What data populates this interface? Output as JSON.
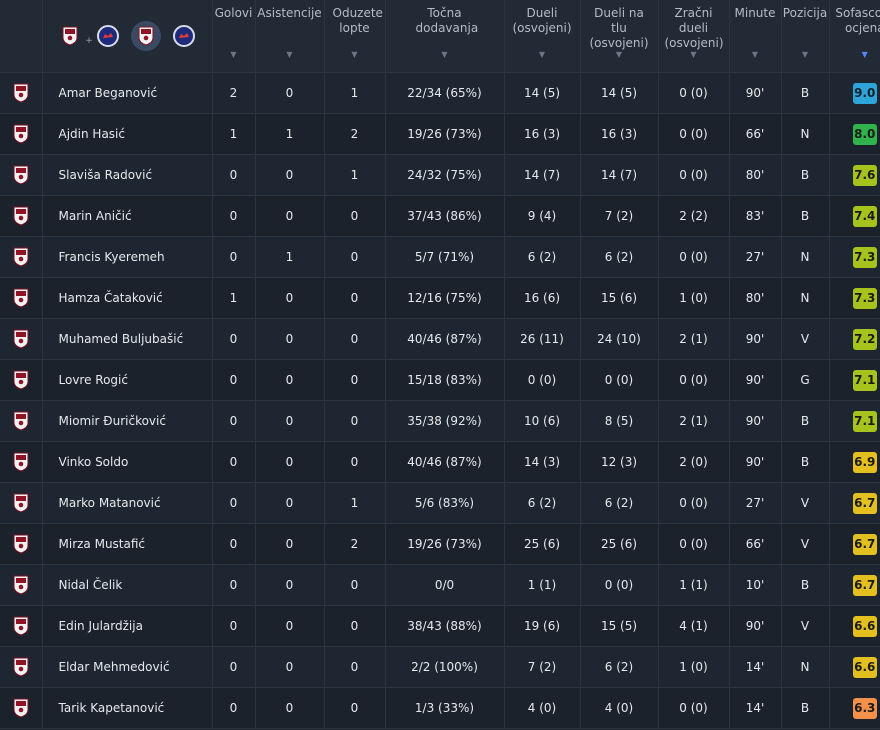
{
  "teams": [
    {
      "name": "sarajevo-crest",
      "selected": false
    },
    {
      "name": "opponent-crest",
      "selected": false
    },
    {
      "name": "sarajevo-crest",
      "selected": true
    },
    {
      "name": "opponent-crest",
      "selected": false
    }
  ],
  "columns": [
    {
      "key": "golovi",
      "label": "Golovi"
    },
    {
      "key": "asistencije",
      "label": "Asistencije"
    },
    {
      "key": "oduzete",
      "label": "Oduzete lopte"
    },
    {
      "key": "tocna",
      "label": "Točna dodavanja"
    },
    {
      "key": "dueli",
      "label": "Dueli (osvojeni)"
    },
    {
      "key": "dueli_tlu",
      "label": "Dueli na tlu (osvojeni)"
    },
    {
      "key": "zracni",
      "label": "Zračni dueli (osvojeni)"
    },
    {
      "key": "minute",
      "label": "Minute"
    },
    {
      "key": "pozicija",
      "label": "Pozicija"
    },
    {
      "key": "ocjena",
      "label": "Sofascore ocjena"
    }
  ],
  "colors": {
    "r9": "#2fa4d8",
    "r8": "#2fb34a",
    "r7": "#a6c21c",
    "r6": "#e3c01f",
    "r6low": "#f39049"
  },
  "players": [
    {
      "name": "Amar Beganović",
      "golovi": "2",
      "asistencije": "0",
      "oduzete": "1",
      "tocna": "22/34 (65%)",
      "dueli": "14 (5)",
      "dueli_tlu": "14 (5)",
      "zracni": "0 (0)",
      "minute": "90'",
      "pozicija": "B",
      "ocjena": "9.0",
      "rating_color": "#2fa4d8"
    },
    {
      "name": "Ajdin Hasić",
      "golovi": "1",
      "asistencije": "1",
      "oduzete": "2",
      "tocna": "19/26 (73%)",
      "dueli": "16 (3)",
      "dueli_tlu": "16 (3)",
      "zracni": "0 (0)",
      "minute": "66'",
      "pozicija": "N",
      "ocjena": "8.0",
      "rating_color": "#2fb34a"
    },
    {
      "name": "Slaviša Radović",
      "golovi": "0",
      "asistencije": "0",
      "oduzete": "1",
      "tocna": "24/32 (75%)",
      "dueli": "14 (7)",
      "dueli_tlu": "14 (7)",
      "zracni": "0 (0)",
      "minute": "80'",
      "pozicija": "B",
      "ocjena": "7.6",
      "rating_color": "#a6c21c"
    },
    {
      "name": "Marin Aničić",
      "golovi": "0",
      "asistencije": "0",
      "oduzete": "0",
      "tocna": "37/43 (86%)",
      "dueli": "9 (4)",
      "dueli_tlu": "7 (2)",
      "zracni": "2 (2)",
      "minute": "83'",
      "pozicija": "B",
      "ocjena": "7.4",
      "rating_color": "#a6c21c"
    },
    {
      "name": "Francis Kyeremeh",
      "golovi": "0",
      "asistencije": "1",
      "oduzete": "0",
      "tocna": "5/7 (71%)",
      "dueli": "6 (2)",
      "dueli_tlu": "6 (2)",
      "zracni": "0 (0)",
      "minute": "27'",
      "pozicija": "N",
      "ocjena": "7.3",
      "rating_color": "#a6c21c"
    },
    {
      "name": "Hamza Čataković",
      "golovi": "1",
      "asistencije": "0",
      "oduzete": "0",
      "tocna": "12/16 (75%)",
      "dueli": "16 (6)",
      "dueli_tlu": "15 (6)",
      "zracni": "1 (0)",
      "minute": "80'",
      "pozicija": "N",
      "ocjena": "7.3",
      "rating_color": "#a6c21c"
    },
    {
      "name": "Muhamed Buljubašić",
      "golovi": "0",
      "asistencije": "0",
      "oduzete": "0",
      "tocna": "40/46 (87%)",
      "dueli": "26 (11)",
      "dueli_tlu": "24 (10)",
      "zracni": "2 (1)",
      "minute": "90'",
      "pozicija": "V",
      "ocjena": "7.2",
      "rating_color": "#a6c21c"
    },
    {
      "name": "Lovre Rogić",
      "golovi": "0",
      "asistencije": "0",
      "oduzete": "0",
      "tocna": "15/18 (83%)",
      "dueli": "0 (0)",
      "dueli_tlu": "0 (0)",
      "zracni": "0 (0)",
      "minute": "90'",
      "pozicija": "G",
      "ocjena": "7.1",
      "rating_color": "#a6c21c"
    },
    {
      "name": "Miomir Đuričković",
      "golovi": "0",
      "asistencije": "0",
      "oduzete": "0",
      "tocna": "35/38 (92%)",
      "dueli": "10 (6)",
      "dueli_tlu": "8 (5)",
      "zracni": "2 (1)",
      "minute": "90'",
      "pozicija": "B",
      "ocjena": "7.1",
      "rating_color": "#a6c21c"
    },
    {
      "name": "Vinko Soldo",
      "golovi": "0",
      "asistencije": "0",
      "oduzete": "0",
      "tocna": "40/46 (87%)",
      "dueli": "14 (3)",
      "dueli_tlu": "12 (3)",
      "zracni": "2 (0)",
      "minute": "90'",
      "pozicija": "B",
      "ocjena": "6.9",
      "rating_color": "#e3c01f"
    },
    {
      "name": "Marko Matanović",
      "golovi": "0",
      "asistencije": "0",
      "oduzete": "1",
      "tocna": "5/6 (83%)",
      "dueli": "6 (2)",
      "dueli_tlu": "6 (2)",
      "zracni": "0 (0)",
      "minute": "27'",
      "pozicija": "V",
      "ocjena": "6.7",
      "rating_color": "#e3c01f"
    },
    {
      "name": "Mirza Mustafić",
      "golovi": "0",
      "asistencije": "0",
      "oduzete": "2",
      "tocna": "19/26 (73%)",
      "dueli": "25 (6)",
      "dueli_tlu": "25 (6)",
      "zracni": "0 (0)",
      "minute": "66'",
      "pozicija": "V",
      "ocjena": "6.7",
      "rating_color": "#e3c01f"
    },
    {
      "name": "Nidal Čelik",
      "golovi": "0",
      "asistencije": "0",
      "oduzete": "0",
      "tocna": "0/0",
      "dueli": "1 (1)",
      "dueli_tlu": "0 (0)",
      "zracni": "1 (1)",
      "minute": "10'",
      "pozicija": "B",
      "ocjena": "6.7",
      "rating_color": "#e3c01f"
    },
    {
      "name": "Edin Julardžija",
      "golovi": "0",
      "asistencije": "0",
      "oduzete": "0",
      "tocna": "38/43 (88%)",
      "dueli": "19 (6)",
      "dueli_tlu": "15 (5)",
      "zracni": "4 (1)",
      "minute": "90'",
      "pozicija": "V",
      "ocjena": "6.6",
      "rating_color": "#e3c01f"
    },
    {
      "name": "Eldar Mehmedović",
      "golovi": "0",
      "asistencije": "0",
      "oduzete": "0",
      "tocna": "2/2 (100%)",
      "dueli": "7 (2)",
      "dueli_tlu": "6 (2)",
      "zracni": "1 (0)",
      "minute": "14'",
      "pozicija": "N",
      "ocjena": "6.6",
      "rating_color": "#e3c01f"
    },
    {
      "name": "Tarik Kapetanović",
      "golovi": "0",
      "asistencije": "0",
      "oduzete": "0",
      "tocna": "1/3 (33%)",
      "dueli": "4 (0)",
      "dueli_tlu": "4 (0)",
      "zracni": "0 (0)",
      "minute": "14'",
      "pozicija": "B",
      "ocjena": "6.3",
      "rating_color": "#f39049"
    }
  ]
}
